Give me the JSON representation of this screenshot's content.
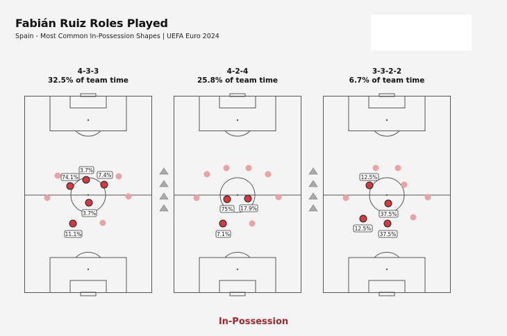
{
  "header": {
    "title": "Fabián Ruiz Roles Played",
    "subtitle": "Spain - Most Common In-Possession Shapes | UEFA Euro 2024"
  },
  "footer": {
    "label": "In-Possession"
  },
  "colors": {
    "player_main": "#d63a3f",
    "player_faded": "#e9a3a5",
    "line": "#555555",
    "footer": "#a02630",
    "triangle": "#aaaaaa"
  },
  "formations": [
    {
      "name": "4-3-3",
      "pct": "32.5% of team time",
      "roles": [
        {
          "label": "74.1%"
        },
        {
          "label": "3.7%"
        },
        {
          "label": "7.4%"
        },
        {
          "label": "3.7%"
        },
        {
          "label": "11.1%"
        }
      ]
    },
    {
      "name": "4-2-4",
      "pct": "25.8% of team time",
      "roles": [
        {
          "label": "75%"
        },
        {
          "label": "17.9%"
        },
        {
          "label": "7.1%"
        }
      ]
    },
    {
      "name": "3-3-2-2",
      "pct": "6.7% of team time",
      "roles": [
        {
          "label": "12.5%"
        },
        {
          "label": "37.5%"
        },
        {
          "label": "12.5%"
        },
        {
          "label": "37.5%"
        }
      ]
    }
  ]
}
